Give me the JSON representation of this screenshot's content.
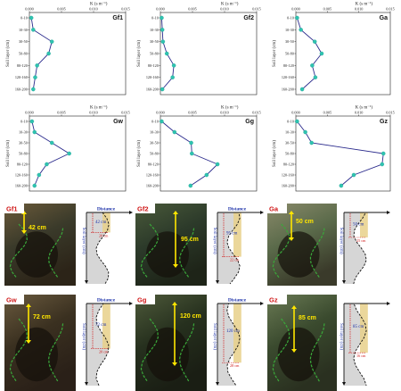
{
  "colors": {
    "line": "#2a2a8c",
    "marker": "#2fc3b0",
    "tick_red": "#d01818",
    "label_blue": "#1a2fa8",
    "root_green": "#3aa83a",
    "arrow_yellow": "#ffe600",
    "sketch_fill": "#d6d6d6",
    "sketch_top": "#e8d08a"
  },
  "chart_data": [
    {
      "type": "line",
      "label": "Gf1",
      "xlabel": "K (s m⁻¹)",
      "ylabel": "Soil layer (cm)",
      "xticks": [
        "0.000",
        "0.005",
        "0.010",
        "0.015"
      ],
      "xlim": [
        0,
        0.015
      ],
      "categories": [
        "0-10",
        "10-30",
        "30-50",
        "50-80",
        "80-120",
        "120-160",
        "160-200"
      ],
      "values": [
        0.0003,
        0.0006,
        0.0035,
        0.003,
        0.0012,
        0.0009,
        0.0006
      ]
    },
    {
      "type": "line",
      "label": "Gf2",
      "xlabel": "K (s m⁻¹)",
      "ylabel": "Soil layer (cm)",
      "xticks": [
        "0.000",
        "0.005",
        "0.010",
        "0.015"
      ],
      "xlim": [
        0,
        0.015
      ],
      "categories": [
        "0-10",
        "10-30",
        "30-50",
        "50-80",
        "80-120",
        "120-160",
        "160-200"
      ],
      "values": [
        0.0002,
        0.0003,
        0.0004,
        0.001,
        0.0021,
        0.0019,
        0.0003
      ]
    },
    {
      "type": "line",
      "label": "Ga",
      "xlabel": "K (s m⁻¹)",
      "ylabel": "Soil layer (cm)",
      "xticks": [
        "0.000",
        "0.005",
        "0.010",
        "0.015"
      ],
      "xlim": [
        0,
        0.015
      ],
      "categories": [
        "0-10",
        "10-30",
        "30-50",
        "50-80",
        "80-120",
        "120-160",
        "160-200"
      ],
      "values": [
        0.0002,
        0.0008,
        0.003,
        0.0041,
        0.0026,
        0.0031,
        0.001
      ]
    },
    {
      "type": "line",
      "label": "Gw",
      "xlabel": "K (s m⁻¹)",
      "ylabel": "Soil layer (cm)",
      "xticks": [
        "0.000",
        "0.005",
        "0.010",
        "0.015"
      ],
      "xlim": [
        0,
        0.015
      ],
      "categories": [
        "0-10",
        "10-30",
        "30-50",
        "50-80",
        "80-120",
        "120-160",
        "160-200"
      ],
      "values": [
        0.0004,
        0.0008,
        0.0035,
        0.0062,
        0.0027,
        0.0015,
        0.0008
      ]
    },
    {
      "type": "line",
      "label": "Gg",
      "xlabel": "K (s m⁻¹)",
      "ylabel": "Soil layer (cm)",
      "xticks": [
        "0.000",
        "0.005",
        "0.010",
        "0.015"
      ],
      "xlim": [
        0,
        0.015
      ],
      "categories": [
        "0-10",
        "10-30",
        "30-50",
        "50-80",
        "80-120",
        "120-160",
        "160-200"
      ],
      "values": [
        0.0002,
        0.0022,
        0.0048,
        0.0049,
        0.0089,
        0.0072,
        0.0047
      ]
    },
    {
      "type": "line",
      "label": "Gz",
      "xlabel": "K (s m⁻¹)",
      "ylabel": "Soil layer (cm)",
      "xticks": [
        "0.000",
        "0.005",
        "0.010",
        "0.015"
      ],
      "xlim": [
        0,
        0.015
      ],
      "categories": [
        "0-10",
        "10-30",
        "30-50",
        "50-80",
        "80-120",
        "120-160",
        "160-200"
      ],
      "values": [
        0.0002,
        0.0015,
        0.0025,
        0.0139,
        0.0137,
        0.0092,
        0.0072
      ]
    }
  ],
  "photos": [
    {
      "label": "Gf1",
      "depth": "42 cm"
    },
    {
      "label": "Gf2",
      "depth": "95 cm"
    },
    {
      "label": "Ga",
      "depth": "50 cm"
    },
    {
      "label": "Gw",
      "depth": "72 cm"
    },
    {
      "label": "Gg",
      "depth": "120 cm"
    },
    {
      "label": "Gz",
      "depth": "85 cm"
    }
  ],
  "sketches": [
    {
      "top_label": "Distance",
      "side_label": "Soil layer (cm)",
      "depth": "42 cm",
      "width": "20 cm"
    },
    {
      "top_label": "Distance",
      "side_label": "Soil layer (cm)",
      "depth": "95 cm",
      "width": "22 cm"
    },
    {
      "top_label": "",
      "side_label": "Soil layer (cm)",
      "depth": "50 cm",
      "width": "25 cm"
    },
    {
      "top_label": "Distance",
      "side_label": "Soil layer (cm)",
      "depth": "72 cm",
      "width": "20 cm"
    },
    {
      "top_label": "Distance",
      "side_label": "Soil layer (cm)",
      "depth": "120 cm",
      "width": "28 cm"
    },
    {
      "top_label": "",
      "side_label": "Soil layer (cm)",
      "depth": "85 cm",
      "width": "16 cm"
    }
  ]
}
